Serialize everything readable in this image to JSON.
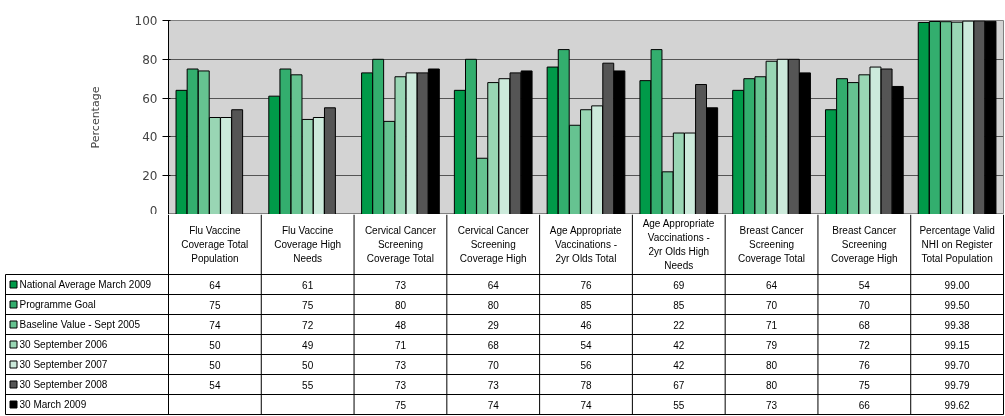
{
  "chart_data": {
    "type": "bar",
    "ylabel": "Percentage",
    "categories": [
      "Flu Vaccine Coverage Total Population",
      "Flu Vaccine Coverage High Needs",
      "Cervical Cancer Screening Coverage Total",
      "Cervical Cancer Screening Coverage High",
      "Age Appropriate Vaccinations - 2yr Olds Total",
      "Age Appropriate Vaccinations - 2yr Olds High Needs",
      "Breast Cancer Screening Coverage Total",
      "Breast Cancer Screening Coverage High",
      "Percentage Valid NHI on Register Total Population"
    ],
    "series": [
      {
        "name": "National Average March 2009",
        "color": "#009a49",
        "values": [
          64,
          61,
          73,
          64,
          76,
          69,
          64,
          54,
          99.0
        ],
        "value_labels": [
          "64",
          "61",
          "73",
          "64",
          "76",
          "69",
          "64",
          "54",
          "99.00"
        ]
      },
      {
        "name": "Programme Goal",
        "color": "#33ae6e",
        "values": [
          75,
          75,
          80,
          80,
          85,
          85,
          70,
          70,
          99.5
        ],
        "value_labels": [
          "75",
          "75",
          "80",
          "80",
          "85",
          "85",
          "70",
          "70",
          "99.50"
        ]
      },
      {
        "name": "Baseline Value - Sept 2005",
        "color": "#66c391",
        "values": [
          74,
          72,
          48,
          29,
          46,
          22,
          71,
          68,
          99.38
        ],
        "value_labels": [
          "74",
          "72",
          "48",
          "29",
          "46",
          "22",
          "71",
          "68",
          "99.38"
        ]
      },
      {
        "name": "30 September 2006",
        "color": "#99d6b4",
        "values": [
          50,
          49,
          71,
          68,
          54,
          42,
          79,
          72,
          99.15
        ],
        "value_labels": [
          "50",
          "49",
          "71",
          "68",
          "54",
          "42",
          "79",
          "72",
          "99.15"
        ]
      },
      {
        "name": "30 September 2007",
        "color": "#cceadb",
        "values": [
          50,
          50,
          73,
          70,
          56,
          42,
          80,
          76,
          99.7
        ],
        "value_labels": [
          "50",
          "50",
          "73",
          "70",
          "56",
          "42",
          "80",
          "76",
          "99.70"
        ]
      },
      {
        "name": "30 September 2008",
        "color": "#555555",
        "values": [
          54,
          55,
          73,
          73,
          78,
          67,
          80,
          75,
          99.79
        ],
        "value_labels": [
          "54",
          "55",
          "73",
          "73",
          "78",
          "67",
          "80",
          "75",
          "99.79"
        ]
      },
      {
        "name": "30 March 2009",
        "color": "#000000",
        "values": [
          null,
          null,
          75,
          74,
          74,
          55,
          73,
          66,
          99.62
        ],
        "value_labels": [
          null,
          null,
          "75",
          "74",
          "74",
          "55",
          "73",
          "66",
          "99.62"
        ]
      }
    ],
    "ylim": [
      0,
      100
    ],
    "yticks": [
      0,
      20,
      40,
      60,
      80,
      100
    ],
    "grid": "y",
    "legend": "bottom left"
  }
}
